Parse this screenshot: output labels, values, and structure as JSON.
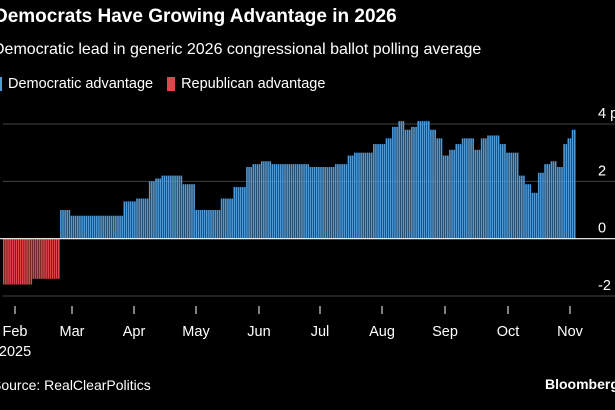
{
  "header": {
    "title": "Democrats Have Growing Advantage in 2026",
    "subtitle": "Democratic lead in generic 2026 congressional ballot polling average"
  },
  "legend": {
    "dem_label": "Democratic advantage",
    "rep_label": "Republican advantage"
  },
  "colors": {
    "democratic": "#4f9bd9",
    "republican": "#e0474c",
    "axis": "#ffffff",
    "grid": "#444444"
  },
  "footer": {
    "source": "Source: RealClearPolitics",
    "brand": "Bloomberg"
  },
  "chart_data": {
    "type": "bar",
    "title": "Democrats Have Growing Advantage in 2026",
    "subtitle": "Democratic lead in generic 2026 congressional ballot polling average",
    "ylabel": "points",
    "ylim": [
      -2,
      4
    ],
    "y_ticks": [
      {
        "value": 4,
        "label": "4 points"
      },
      {
        "value": 2,
        "label": "2"
      },
      {
        "value": 0,
        "label": "0"
      },
      {
        "value": -2,
        "label": "-2"
      }
    ],
    "x_ticks": [
      "Feb",
      "Mar",
      "Apr",
      "May",
      "Jun",
      "Jul",
      "Aug",
      "Sep",
      "Oct",
      "Nov"
    ],
    "x_year_label": "2025",
    "series": [
      {
        "name": "Democratic advantage",
        "values": [
          1.0,
          1.0,
          1.0,
          1.0,
          1.0,
          0.8,
          0.8,
          0.8,
          0.8,
          0.8,
          0.8,
          0.8,
          0.8,
          0.8,
          0.8,
          0.8,
          0.8,
          0.8,
          0.8,
          0.8,
          0.8,
          0.8,
          0.8,
          0.8,
          0.8,
          0.8,
          0.8,
          0.8,
          0.8,
          0.8,
          1.3,
          1.3,
          1.3,
          1.3,
          1.3,
          1.3,
          1.4,
          1.4,
          1.4,
          1.4,
          1.4,
          1.4,
          2.0,
          2.0,
          2.0,
          2.1,
          2.1,
          2.1,
          2.2,
          2.2,
          2.2,
          2.2,
          2.2,
          2.2,
          2.2,
          2.2,
          2.2,
          2.2,
          1.9,
          1.9,
          1.9,
          1.9,
          1.9,
          1.9,
          1.0,
          1.0,
          1.0,
          1.0,
          1.0,
          1.0,
          1.0,
          1.0,
          1.0,
          1.0,
          1.0,
          1.0,
          1.4,
          1.4,
          1.4,
          1.4,
          1.4,
          1.4,
          1.8,
          1.8,
          1.8,
          1.8,
          1.8,
          1.8,
          2.5,
          2.5,
          2.5,
          2.6,
          2.6,
          2.6,
          2.6,
          2.7,
          2.7,
          2.7,
          2.7,
          2.7,
          2.6,
          2.6,
          2.6,
          2.6,
          2.6,
          2.6,
          2.6,
          2.6,
          2.6,
          2.6,
          2.6,
          2.6,
          2.6,
          2.6,
          2.6,
          2.6,
          2.6,
          2.6,
          2.5,
          2.5,
          2.5,
          2.5,
          2.5,
          2.5,
          2.5,
          2.5,
          2.5,
          2.5,
          2.5,
          2.5,
          2.6,
          2.6,
          2.6,
          2.6,
          2.6,
          2.6,
          2.9,
          2.9,
          2.9,
          3.0,
          3.0,
          3.0,
          3.0,
          3.0,
          3.0,
          3.0,
          3.0,
          3.0,
          3.3,
          3.3,
          3.3,
          3.3,
          3.3,
          3.3,
          3.5,
          3.5,
          3.5,
          3.9,
          3.9,
          3.9,
          4.1,
          4.1,
          4.1,
          3.8,
          3.8,
          3.8,
          3.9,
          3.9,
          3.9,
          4.1,
          4.1,
          4.1,
          4.1,
          4.1,
          4.1,
          3.8,
          3.8,
          3.8,
          3.5,
          3.5,
          3.5,
          2.9,
          2.9,
          2.9,
          3.1,
          3.1,
          3.1,
          3.3,
          3.3,
          3.3,
          3.5,
          3.5,
          3.5,
          3.5,
          3.5,
          3.5,
          3.1,
          3.1,
          3.1,
          3.5,
          3.5,
          3.5,
          3.6,
          3.6,
          3.6,
          3.6,
          3.6,
          3.6,
          3.3,
          3.3,
          3.3,
          3.0,
          3.0,
          3.0,
          3.0,
          3.0,
          3.0,
          2.2,
          2.2,
          2.2,
          1.9,
          1.9,
          1.9,
          1.6,
          1.6,
          1.6,
          2.3,
          2.3,
          2.3,
          2.6,
          2.6,
          2.6,
          2.7,
          2.7,
          2.7,
          2.5,
          2.5,
          2.5,
          3.3,
          3.3,
          3.5,
          3.5,
          3.8,
          3.8
        ]
      },
      {
        "name": "Republican advantage",
        "values": [
          -1.6,
          -1.6,
          -1.6,
          -1.6,
          -1.6,
          -1.6,
          -1.6,
          -1.6,
          -1.6,
          -1.6,
          -1.6,
          -1.6,
          -1.6,
          -1.6,
          -1.4,
          -1.4,
          -1.4,
          -1.4,
          -1.4,
          -1.4,
          -1.4,
          -1.4,
          -1.4,
          -1.4,
          -1.4,
          -1.4,
          -1.4
        ]
      }
    ]
  }
}
